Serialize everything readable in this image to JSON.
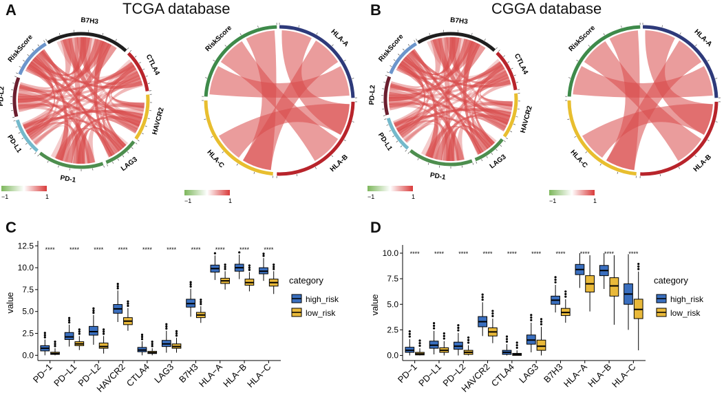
{
  "panels": {
    "A": {
      "letter": "A",
      "title": "TCGA database"
    },
    "B": {
      "letter": "B",
      "title": "CGGA database"
    },
    "C": {
      "letter": "C"
    },
    "D": {
      "letter": "D"
    }
  },
  "colors": {
    "high_risk": "#3A6FBF",
    "low_risk": "#E9B93A",
    "chord_red": "#D84B4B",
    "pos": "#D93A3A",
    "neg": "#7DB75C",
    "sectors": {
      "RiskScore": "#6C95CB",
      "B7H3": "#1E1E1E",
      "CTLA4": "#B8242B",
      "HAVCR2": "#E8BE2F",
      "LAG3": "#4D8E4E",
      "PD-1": "#4D8E4E",
      "PD-L1": "#74B9CB",
      "PD-L2": "#6B1E2E",
      "HLA-A": "#2E3A7A",
      "HLA-B": "#B8242B",
      "HLA-C": "#E8BE2F",
      "RiskScoreHLA": "#3E8A4A"
    }
  },
  "chart_data": [
    {
      "type": "chord",
      "panel": "A-left",
      "sectors": [
        "B7H3",
        "CTLA4",
        "HAVCR2",
        "LAG3",
        "PD-1",
        "PD-L1",
        "PD-L2",
        "RiskScore"
      ],
      "color_scale": {
        "min": -1,
        "max": 1,
        "min_label": "−1",
        "max_label": "1"
      }
    },
    {
      "type": "chord",
      "panel": "A-right",
      "sectors": [
        "HLA-A",
        "HLA-B",
        "HLA-C",
        "RiskScore"
      ],
      "color_scale": {
        "min": -1,
        "max": 1,
        "min_label": "−1",
        "max_label": "1"
      }
    },
    {
      "type": "chord",
      "panel": "B-left",
      "sectors": [
        "B7H3",
        "CTLA4",
        "HAVCR2",
        "LAG3",
        "PD-1",
        "PD-L1",
        "PD-L2",
        "RiskScore"
      ],
      "color_scale": {
        "min": -1,
        "max": 1,
        "min_label": "−1",
        "max_label": "1"
      }
    },
    {
      "type": "chord",
      "panel": "B-right",
      "sectors": [
        "HLA-A",
        "HLA-B",
        "HLA-C",
        "RiskScore"
      ],
      "color_scale": {
        "min": -1,
        "max": 1,
        "min_label": "−1",
        "max_label": "1"
      }
    },
    {
      "type": "box",
      "panel": "C",
      "ylabel": "value",
      "ylim": [
        -0.6,
        12.6
      ],
      "yticks": [
        0.0,
        2.5,
        5.0,
        7.5,
        10.0,
        12.5
      ],
      "ytick_labels": [
        "0.0",
        "2.5",
        "5.0",
        "7.5",
        "10.0",
        "12.5"
      ],
      "categories": [
        "PD−1",
        "PD−L1",
        "PD−L2",
        "HAVCR2",
        "CTLA4",
        "LAG3",
        "B7H3",
        "HLA−A",
        "HLA−B",
        "HLA−C"
      ],
      "significance": [
        "****",
        "****",
        "****",
        "****",
        "****",
        "****",
        "****",
        "****",
        "****",
        "****"
      ],
      "legend": {
        "title": "category",
        "items": [
          "high_risk",
          "low_risk"
        ]
      },
      "series": [
        {
          "name": "high_risk",
          "boxes": [
            {
              "q1": 0.5,
              "median": 0.8,
              "q3": 1.1,
              "wlo": 0.0,
              "whi": 1.8
            },
            {
              "q1": 1.8,
              "median": 2.1,
              "q3": 2.6,
              "wlo": 1.0,
              "whi": 3.5
            },
            {
              "q1": 2.3,
              "median": 2.7,
              "q3": 3.3,
              "wlo": 1.2,
              "whi": 4.6
            },
            {
              "q1": 4.8,
              "median": 5.3,
              "q3": 5.8,
              "wlo": 3.8,
              "whi": 7.4
            },
            {
              "q1": 0.4,
              "median": 0.6,
              "q3": 0.9,
              "wlo": 0.0,
              "whi": 1.6
            },
            {
              "q1": 1.0,
              "median": 1.3,
              "q3": 1.7,
              "wlo": 0.3,
              "whi": 2.8
            },
            {
              "q1": 5.5,
              "median": 5.9,
              "q3": 6.4,
              "wlo": 4.4,
              "whi": 7.6
            },
            {
              "q1": 9.5,
              "median": 9.9,
              "q3": 10.3,
              "wlo": 8.6,
              "whi": 11.4
            },
            {
              "q1": 9.6,
              "median": 10.0,
              "q3": 10.4,
              "wlo": 8.7,
              "whi": 11.5
            },
            {
              "q1": 9.3,
              "median": 9.6,
              "q3": 10.0,
              "wlo": 8.5,
              "whi": 11.1
            }
          ]
        },
        {
          "name": "low_risk",
          "boxes": [
            {
              "q1": 0.1,
              "median": 0.2,
              "q3": 0.35,
              "wlo": 0.0,
              "whi": 0.8
            },
            {
              "q1": 1.1,
              "median": 1.3,
              "q3": 1.55,
              "wlo": 0.6,
              "whi": 2.2
            },
            {
              "q1": 0.8,
              "median": 1.0,
              "q3": 1.4,
              "wlo": 0.2,
              "whi": 2.2
            },
            {
              "q1": 3.5,
              "median": 3.9,
              "q3": 4.3,
              "wlo": 2.8,
              "whi": 5.4
            },
            {
              "q1": 0.2,
              "median": 0.3,
              "q3": 0.45,
              "wlo": 0.0,
              "whi": 0.8
            },
            {
              "q1": 0.8,
              "median": 1.0,
              "q3": 1.3,
              "wlo": 0.3,
              "whi": 2.0
            },
            {
              "q1": 4.3,
              "median": 4.6,
              "q3": 4.9,
              "wlo": 3.7,
              "whi": 5.6
            },
            {
              "q1": 8.2,
              "median": 8.5,
              "q3": 8.8,
              "wlo": 7.5,
              "whi": 9.6
            },
            {
              "q1": 8.0,
              "median": 8.3,
              "q3": 8.7,
              "wlo": 7.3,
              "whi": 9.5
            },
            {
              "q1": 7.9,
              "median": 8.3,
              "q3": 8.7,
              "wlo": 7.0,
              "whi": 9.6
            }
          ]
        }
      ]
    },
    {
      "type": "box",
      "panel": "D",
      "ylabel": "value",
      "ylim": [
        -0.5,
        10.4
      ],
      "yticks": [
        0.0,
        2.5,
        5.0,
        7.5,
        10.0
      ],
      "ytick_labels": [
        "0.0",
        "2.5",
        "5.0",
        "7.5",
        "10.0"
      ],
      "categories": [
        "PD−1",
        "PD−L1",
        "PD−L2",
        "HAVCR2",
        "CTLA4",
        "LAG3",
        "B7H3",
        "HLA−A",
        "HLA−B",
        "HLA−C"
      ],
      "significance": [
        "****",
        "****",
        "****",
        "****",
        "****",
        "****",
        "****",
        "****",
        "****",
        "****"
      ],
      "legend": {
        "title": "category",
        "items": [
          "high_risk",
          "low_risk"
        ]
      },
      "series": [
        {
          "name": "high_risk",
          "boxes": [
            {
              "q1": 0.3,
              "median": 0.5,
              "q3": 0.8,
              "wlo": 0.0,
              "whi": 1.6
            },
            {
              "q1": 0.7,
              "median": 1.0,
              "q3": 1.4,
              "wlo": 0.1,
              "whi": 2.4
            },
            {
              "q1": 0.6,
              "median": 0.9,
              "q3": 1.3,
              "wlo": 0.0,
              "whi": 2.2
            },
            {
              "q1": 2.8,
              "median": 3.3,
              "q3": 3.8,
              "wlo": 1.9,
              "whi": 5.2
            },
            {
              "q1": 0.1,
              "median": 0.3,
              "q3": 0.5,
              "wlo": 0.0,
              "whi": 1.1
            },
            {
              "q1": 1.1,
              "median": 1.5,
              "q3": 2.0,
              "wlo": 0.3,
              "whi": 3.2
            },
            {
              "q1": 5.0,
              "median": 5.4,
              "q3": 5.8,
              "wlo": 4.2,
              "whi": 6.9
            },
            {
              "q1": 7.9,
              "median": 8.4,
              "q3": 8.9,
              "wlo": 6.6,
              "whi": 10.0
            },
            {
              "q1": 7.8,
              "median": 8.3,
              "q3": 8.8,
              "wlo": 6.5,
              "whi": 10.0
            },
            {
              "q1": 5.0,
              "median": 6.0,
              "q3": 7.0,
              "wlo": 2.5,
              "whi": 9.9
            }
          ]
        },
        {
          "name": "low_risk",
          "boxes": [
            {
              "q1": 0.05,
              "median": 0.15,
              "q3": 0.3,
              "wlo": 0.0,
              "whi": 0.7
            },
            {
              "q1": 0.3,
              "median": 0.5,
              "q3": 0.75,
              "wlo": 0.0,
              "whi": 1.4
            },
            {
              "q1": 0.1,
              "median": 0.3,
              "q3": 0.5,
              "wlo": 0.0,
              "whi": 1.0
            },
            {
              "q1": 1.9,
              "median": 2.3,
              "q3": 2.7,
              "wlo": 1.2,
              "whi": 3.6
            },
            {
              "q1": 0.0,
              "median": 0.1,
              "q3": 0.2,
              "wlo": 0.0,
              "whi": 0.5
            },
            {
              "q1": 0.5,
              "median": 0.9,
              "q3": 1.5,
              "wlo": 0.0,
              "whi": 2.8
            },
            {
              "q1": 3.9,
              "median": 4.2,
              "q3": 4.6,
              "wlo": 3.2,
              "whi": 5.5
            },
            {
              "q1": 6.2,
              "median": 7.0,
              "q3": 7.8,
              "wlo": 4.3,
              "whi": 9.8
            },
            {
              "q1": 5.8,
              "median": 6.8,
              "q3": 7.6,
              "wlo": 3.0,
              "whi": 9.8
            },
            {
              "q1": 3.6,
              "median": 4.5,
              "q3": 5.5,
              "wlo": 0.5,
              "whi": 8.2
            }
          ]
        }
      ]
    }
  ]
}
